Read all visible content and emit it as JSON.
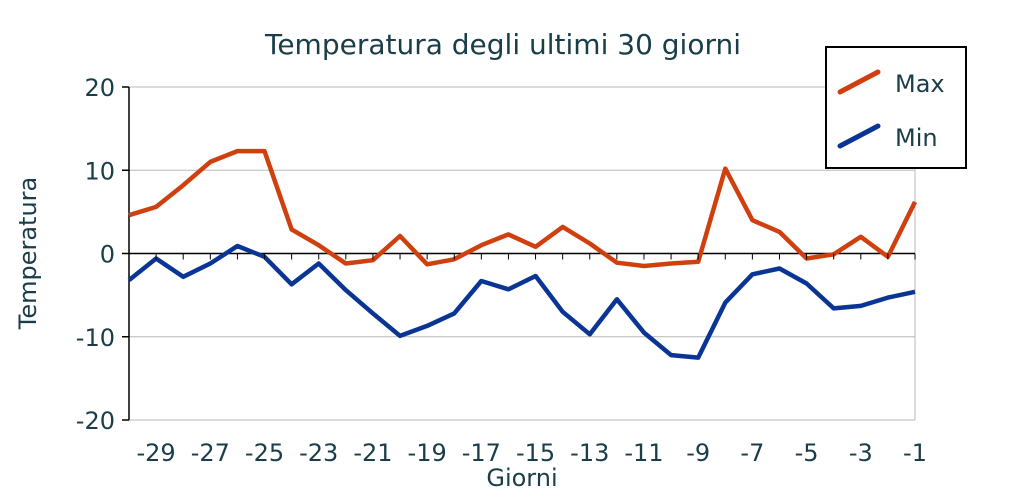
{
  "chart_data": {
    "type": "line",
    "title": "Temperatura degli ultimi 30 giorni",
    "xlabel": "Giorni",
    "ylabel": "Temperatura",
    "x": [
      -30,
      -29,
      -28,
      -27,
      -26,
      -25,
      -24,
      -23,
      -22,
      -21,
      -20,
      -19,
      -18,
      -17,
      -16,
      -15,
      -14,
      -13,
      -12,
      -11,
      -10,
      -9,
      -8,
      -7,
      -6,
      -5,
      -4,
      -3,
      -2,
      -1
    ],
    "x_tick_labels": [
      "-29",
      "-27",
      "-25",
      "-23",
      "-21",
      "-19",
      "-17",
      "-15",
      "-13",
      "-11",
      "-9",
      "-7",
      "-5",
      "-3",
      "-1"
    ],
    "y_tick_labels": [
      "20",
      "10",
      "0",
      "-10",
      "-20"
    ],
    "ylim": [
      -20,
      20
    ],
    "grid": true,
    "legend": "top-right",
    "series": [
      {
        "name": "Max",
        "color": "#d0400e",
        "values": [
          4.6,
          5.6,
          8.2,
          11.0,
          12.3,
          12.3,
          2.9,
          1.0,
          -1.2,
          -0.8,
          2.1,
          -1.3,
          -0.7,
          1.0,
          2.3,
          0.8,
          3.2,
          1.2,
          -1.1,
          -1.5,
          -1.2,
          -1.0,
          10.2,
          4.0,
          2.6,
          -0.6,
          -0.1,
          2.0,
          -0.4,
          6.2
        ]
      },
      {
        "name": "Min",
        "color": "#0a3595",
        "values": [
          -3.2,
          -0.6,
          -2.8,
          -1.2,
          0.9,
          -0.4,
          -3.7,
          -1.2,
          -4.4,
          -7.2,
          -9.9,
          -8.7,
          -7.2,
          -3.3,
          -4.3,
          -2.7,
          -7.0,
          -9.7,
          -5.5,
          -9.5,
          -12.2,
          -12.5,
          -5.9,
          -2.5,
          -1.8,
          -3.6,
          -6.6,
          -6.3,
          -5.3,
          -4.6
        ]
      }
    ]
  }
}
